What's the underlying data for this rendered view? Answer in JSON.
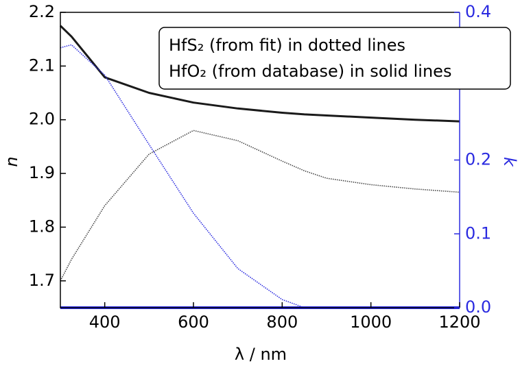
{
  "chart_data": {
    "type": "line",
    "xlabel": "λ / nm",
    "ylabel": "n",
    "y2label": "k",
    "annotations": [
      "HfS₂ (from fit) in dotted lines",
      "HfO₂ (from database) in solid lines"
    ],
    "x": [
      300,
      325,
      400,
      500,
      600,
      700,
      800,
      850,
      900,
      1000,
      1100,
      1200
    ],
    "series": [
      {
        "color": "#1a1a1a",
        "style": "solid",
        "values": [
          2.175,
          2.155,
          2.079,
          2.05,
          2.032,
          2.021,
          2.013,
          2.01,
          2.008,
          2.004,
          2.0,
          1.997
        ]
      },
      {
        "color": "#444444",
        "style": "dotted",
        "values": [
          1.7,
          1.74,
          1.84,
          1.936,
          1.98,
          1.961,
          1.923,
          1.905,
          1.891,
          1.879,
          1.871,
          1.865
        ]
      },
      {
        "color": "#2b2be0",
        "style": "dotted",
        "axis": "y2",
        "values": [
          0.352,
          0.356,
          0.315,
          0.221,
          0.128,
          0.053,
          0.011,
          0,
          0,
          0,
          0,
          0
        ]
      },
      {
        "color": "#2b2be0",
        "style": "solid",
        "axis": "y2",
        "values": [
          0,
          0,
          0,
          0,
          0,
          0,
          0,
          0,
          0,
          0,
          0,
          0
        ]
      }
    ],
    "xlim": [
      300,
      1200
    ],
    "xticks": [
      400,
      600,
      800,
      1000,
      1200
    ],
    "ylim": [
      1.65,
      2.2
    ],
    "yticks": [
      1.7,
      1.8,
      1.9,
      {
        "value": 2.0,
        "label": "2.0"
      },
      2.1,
      2.2
    ],
    "y2lim": [
      0,
      0.4
    ],
    "y2ticks": [
      {
        "value": 0,
        "label": "0.0"
      },
      0.1,
      0.2,
      0.4
    ],
    "y2color": "#2b2be0"
  }
}
